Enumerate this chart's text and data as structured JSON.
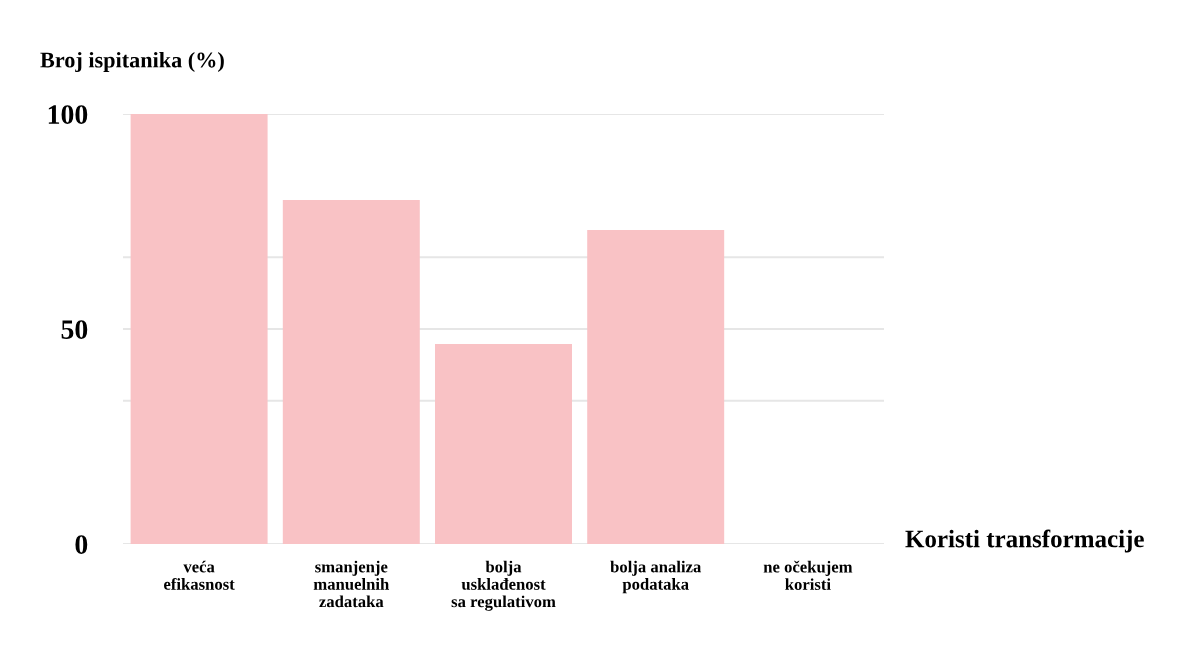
{
  "chart_data": {
    "type": "bar",
    "ylabel": "Broj ispitanika (%)",
    "xlabel": "Koristi transformacije",
    "categories": [
      "veća\nefikasnost",
      "smanjenje\nmanuelnih\nzadataka",
      "bolja\nusklađenost\nsa regulativom",
      "bolja analiza\npodataka",
      "ne očekujem\nkoristi"
    ],
    "values": [
      100,
      80,
      46.5,
      73,
      0
    ],
    "color": "#f9c2c5",
    "ylim": [
      0,
      100
    ],
    "yticks": [
      0,
      {
        "value": 33.3,
        "label": null
      },
      50,
      {
        "value": 66.7,
        "label": null
      },
      100
    ],
    "grid": "y"
  }
}
